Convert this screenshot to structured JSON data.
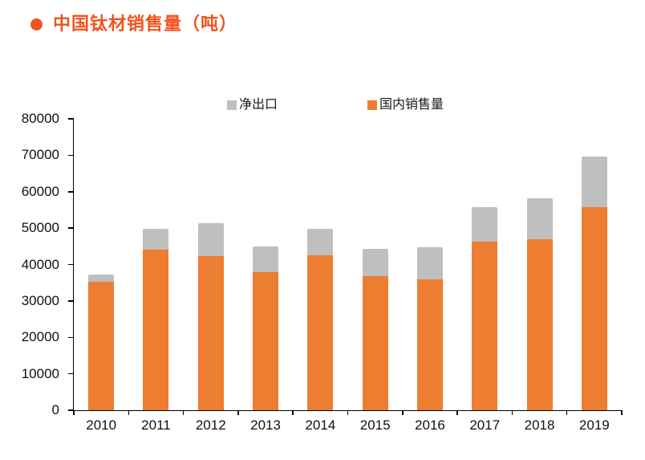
{
  "theme": {
    "accent": "#F0541E",
    "bar_domestic_color": "#ED7D31",
    "bar_net_export_color": "#BFBFBF",
    "axis_color": "#000000",
    "text_color": "#1A1A1A"
  },
  "header": {
    "bullet_icon": "circle-bullet",
    "title": "中国钛材销售量（吨）"
  },
  "legend": {
    "items": [
      {
        "label": "净出口",
        "color": "#BFBFBF"
      },
      {
        "label": "国内销售量",
        "color": "#ED7D31"
      }
    ]
  },
  "chart_data": {
    "type": "bar",
    "stacked": true,
    "title": "中国钛材销售量（吨）",
    "categories": [
      "2010",
      "2011",
      "2012",
      "2013",
      "2014",
      "2015",
      "2016",
      "2017",
      "2018",
      "2019"
    ],
    "series": [
      {
        "name": "国内销售量",
        "color": "#ED7D31",
        "values": [
          35300,
          44100,
          42300,
          37800,
          42500,
          36800,
          36000,
          46200,
          46900,
          55800
        ]
      },
      {
        "name": "净出口",
        "color": "#BFBFBF",
        "values": [
          2000,
          5700,
          9000,
          7200,
          7400,
          7500,
          8700,
          9500,
          11200,
          13900
        ]
      }
    ],
    "totals": [
      37300,
      49800,
      51300,
      45000,
      49900,
      44300,
      44700,
      55700,
      58100,
      69700
    ],
    "xlabel": "",
    "ylabel": "",
    "ylim": [
      0,
      80000
    ],
    "ytick_step": 10000,
    "ytick_labels": [
      "0",
      "10000",
      "20000",
      "30000",
      "40000",
      "50000",
      "60000",
      "70000",
      "80000"
    ],
    "legend_position": "top-center",
    "grid": false
  }
}
